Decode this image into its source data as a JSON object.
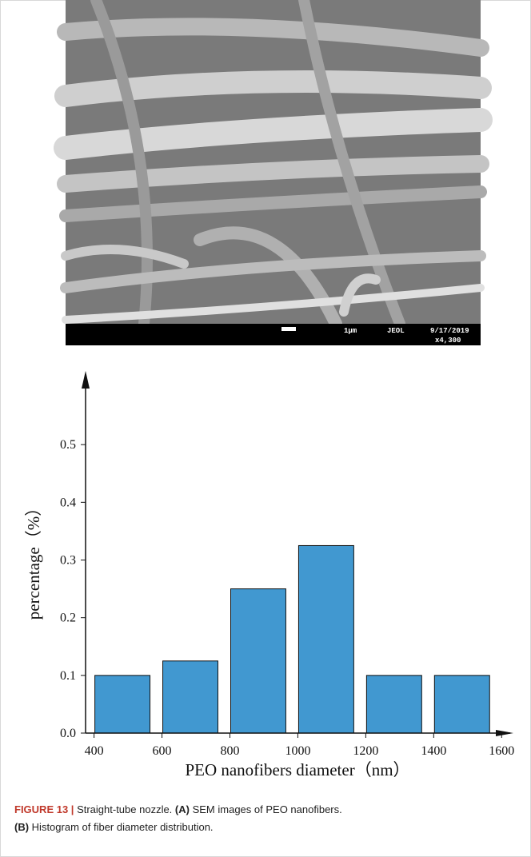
{
  "sem_image": {
    "scale_label": "1μm",
    "maker": "JEOL",
    "date": "9/17/2019",
    "magnification": "x4,300"
  },
  "chart_data": {
    "type": "histogram",
    "x_label": "PEO nanofibers diameter（nm）",
    "y_label": "percentage（%）",
    "bins": [
      400,
      600,
      800,
      1000,
      1200,
      1400,
      1600
    ],
    "values": [
      0.1,
      0.125,
      0.25,
      0.325,
      0.1,
      0.1
    ],
    "color": "#4198d0",
    "xlim": [
      375,
      1630
    ],
    "ylim": [
      0,
      0.6
    ],
    "xticks": [
      400,
      600,
      800,
      1000,
      1200,
      1400,
      1600
    ],
    "yticks": [
      {
        "value": 0,
        "label": "0.0"
      },
      0.1,
      0.2,
      0.3,
      0.4,
      0.5
    ]
  },
  "caption": {
    "label": "FIGURE 13 |",
    "title": "Straight-tube nozzle.",
    "parts": [
      {
        "tag": "(A)",
        "text": "SEM images of PEO nanofibers."
      },
      {
        "tag": "(B)",
        "text": "Histogram of fiber diameter distribution."
      }
    ]
  }
}
